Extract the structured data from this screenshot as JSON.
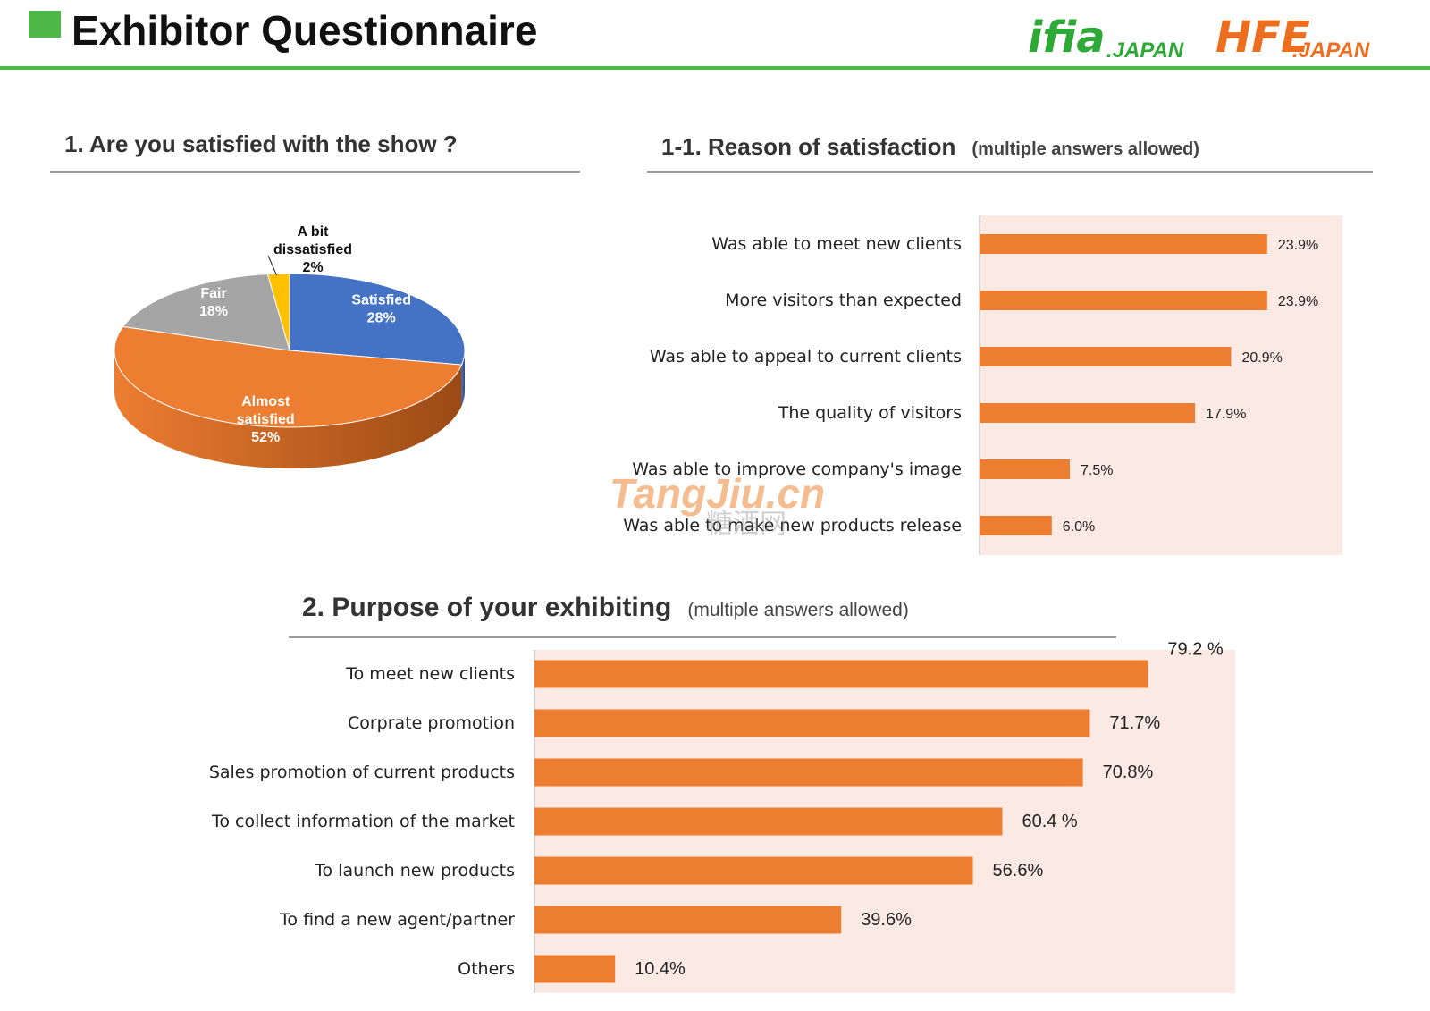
{
  "header": {
    "title": "Exhibitor Questionnaire",
    "logo": {
      "brand1": "ifia",
      "brand1_suffix": ".JAPAN",
      "brand2": "HFE",
      "brand2_suffix": ".JAPAN",
      "brand1_color": "#2ea836",
      "brand2_color": "#ec6e1f"
    },
    "accent_color": "#4db848"
  },
  "sections": {
    "q1": {
      "title": "1. Are you satisfied with the show ?"
    },
    "q1_1": {
      "title": "1-1. Reason of satisfaction",
      "note": "(multiple answers allowed)"
    },
    "q2": {
      "title": "2. Purpose of your exhibiting",
      "note": "(multiple answers allowed)"
    }
  },
  "watermark": {
    "latin": "TangJiu.cn",
    "cjk": "糖酒网"
  },
  "chart_data": [
    {
      "id": "satisfaction",
      "type": "pie",
      "style": "3d",
      "slices": [
        {
          "label": "Satisfied",
          "value": 28,
          "display": "28%",
          "color": "#4472c4",
          "side": "#2c4d8a"
        },
        {
          "label": "Almost satisfied",
          "value": 52,
          "display": "52%",
          "color": "#ed7d31",
          "side": "#9b4a15"
        },
        {
          "label": "Fair",
          "value": 18,
          "display": "18%",
          "color": "#a5a5a5",
          "side": "#6e6e6e"
        },
        {
          "label": "A bit dissatisfied",
          "value": 2,
          "display": "2%",
          "color": "#ffc000",
          "side": "#b88a00"
        }
      ]
    },
    {
      "id": "reason",
      "type": "bar",
      "orientation": "horizontal",
      "bar_color": "#ed7d31",
      "plot_background": "#fbe9e4",
      "xlim": [
        0,
        30
      ],
      "categories": [
        "Was able to meet new clients",
        "More visitors than expected",
        "Was able to appeal to current clients",
        "The quality of visitors",
        "Was able to improve company's image",
        "Was able to make new products release"
      ],
      "values": [
        23.9,
        23.9,
        20.9,
        17.9,
        7.5,
        6.0
      ],
      "labels": [
        "23.9%",
        "23.9%",
        "20.9%",
        "17.9%",
        "7.5%",
        "6.0%"
      ]
    },
    {
      "id": "purpose",
      "type": "bar",
      "orientation": "horizontal",
      "bar_color": "#ed7d31",
      "plot_background": "#fbe9e4",
      "xlim": [
        0,
        90
      ],
      "categories": [
        "To meet new clients",
        "Corprate promotion",
        "Sales promotion of current products",
        "To collect information of the market",
        "To launch new products",
        "To find a new agent/partner",
        "Others"
      ],
      "values": [
        79.2,
        71.7,
        70.8,
        60.4,
        56.6,
        39.6,
        10.4
      ],
      "labels": [
        "79.2 %",
        "71.7%",
        "70.8%",
        "60.4 %",
        "56.6%",
        "39.6%",
        "10.4%"
      ]
    }
  ]
}
